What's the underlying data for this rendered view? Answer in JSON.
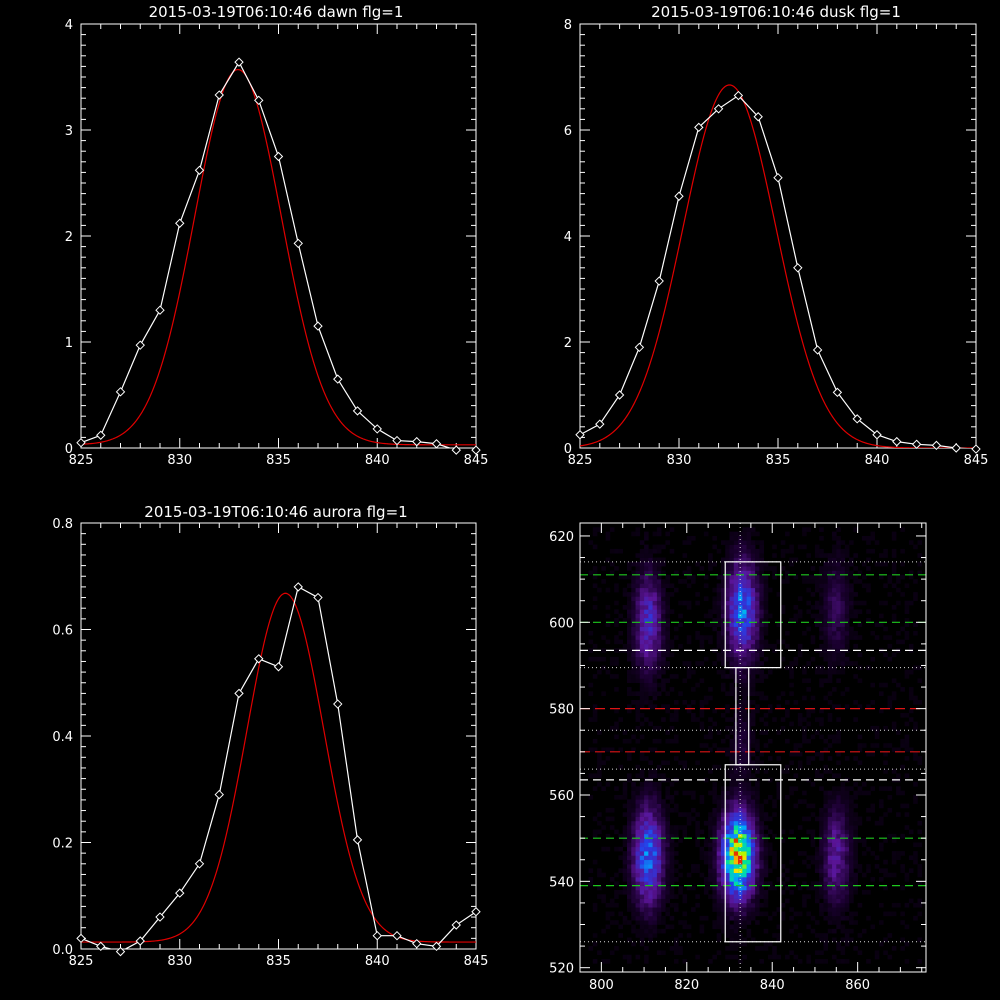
{
  "chart_data": [
    {
      "type": "line",
      "title": "2015-03-19T06:10:46 dawn flg=1",
      "xlim": [
        825,
        845
      ],
      "ylim": [
        0,
        4
      ],
      "xticks": [
        825,
        830,
        835,
        840,
        845
      ],
      "yticks": [
        0,
        1,
        2,
        3,
        4
      ],
      "series": [
        {
          "kind": "measured",
          "color": "#ffffff",
          "marker": "diamond",
          "x": [
            825,
            826,
            827,
            828,
            829,
            830,
            831,
            832,
            833,
            834,
            835,
            836,
            837,
            838,
            839,
            840,
            841,
            842,
            843,
            844,
            845
          ],
          "y": [
            0.05,
            0.12,
            0.53,
            0.97,
            1.3,
            2.12,
            2.62,
            3.33,
            3.64,
            3.28,
            2.75,
            1.93,
            1.15,
            0.65,
            0.35,
            0.18,
            0.07,
            0.06,
            0.04,
            -0.02,
            -0.02
          ]
        },
        {
          "kind": "fit",
          "color": "#e00000",
          "model": "gaussian",
          "amp": 3.54,
          "center": 832.95,
          "sigma": 2.2,
          "offset": 0.03
        }
      ]
    },
    {
      "type": "line",
      "title": "2015-03-19T06:10:46 dusk flg=1",
      "xlim": [
        825,
        845
      ],
      "ylim": [
        0,
        8
      ],
      "xticks": [
        825,
        830,
        835,
        840,
        845
      ],
      "yticks": [
        0,
        2,
        4,
        6,
        8
      ],
      "series": [
        {
          "kind": "measured",
          "color": "#ffffff",
          "marker": "diamond",
          "x": [
            825,
            826,
            827,
            828,
            829,
            830,
            831,
            832,
            833,
            834,
            835,
            836,
            837,
            838,
            839,
            840,
            841,
            842,
            843,
            844,
            845
          ],
          "y": [
            0.25,
            0.45,
            1.0,
            1.9,
            3.15,
            4.75,
            6.05,
            6.4,
            6.65,
            6.25,
            5.1,
            3.4,
            1.85,
            1.05,
            0.55,
            0.25,
            0.12,
            0.07,
            0.05,
            0.0,
            -0.02
          ]
        },
        {
          "kind": "fit",
          "color": "#e00000",
          "model": "gaussian",
          "amp": 6.85,
          "center": 832.55,
          "sigma": 2.35,
          "offset": 0.0
        }
      ]
    },
    {
      "type": "line",
      "title": "2015-03-19T06:10:46 aurora flg=1",
      "xlim": [
        825,
        845
      ],
      "ylim": [
        0,
        0.8
      ],
      "xticks": [
        825,
        830,
        835,
        840,
        845
      ],
      "yticks": [
        0.0,
        0.2,
        0.4,
        0.6,
        0.8
      ],
      "series": [
        {
          "kind": "measured",
          "color": "#ffffff",
          "marker": "diamond",
          "x": [
            825,
            826,
            827,
            828,
            829,
            830,
            831,
            832,
            833,
            834,
            835,
            836,
            837,
            838,
            839,
            840,
            841,
            842,
            843,
            844,
            845
          ],
          "y": [
            0.02,
            0.005,
            -0.005,
            0.015,
            0.06,
            0.105,
            0.16,
            0.29,
            0.48,
            0.545,
            0.53,
            0.68,
            0.66,
            0.46,
            0.205,
            0.025,
            0.025,
            0.01,
            0.005,
            0.045,
            0.07
          ]
        },
        {
          "kind": "fit",
          "color": "#e00000",
          "model": "gaussian",
          "amp": 0.655,
          "center": 835.35,
          "sigma": 1.95,
          "offset": 0.013
        }
      ]
    },
    {
      "type": "heatmap",
      "title": "",
      "xlim": [
        795,
        876
      ],
      "ylim": [
        519,
        623
      ],
      "xticks": [
        800,
        820,
        840,
        860
      ],
      "yticks": [
        520,
        540,
        560,
        580,
        600,
        620
      ],
      "spots": [
        {
          "x": 833,
          "y": 603,
          "sx": 2.2,
          "sy": 7,
          "amp": 0.45
        },
        {
          "x": 811,
          "y": 600,
          "sx": 2.0,
          "sy": 7,
          "amp": 0.28
        },
        {
          "x": 832,
          "y": 546,
          "sx": 2.4,
          "sy": 6,
          "amp": 0.95
        },
        {
          "x": 811,
          "y": 546,
          "sx": 2.2,
          "sy": 7,
          "amp": 0.45
        },
        {
          "x": 855,
          "y": 546,
          "sx": 2.0,
          "sy": 7,
          "amp": 0.2
        },
        {
          "x": 855,
          "y": 603,
          "sx": 2.0,
          "sy": 7,
          "amp": 0.1
        },
        {
          "x": 833,
          "y": 572,
          "sx": 1.6,
          "sy": 6,
          "amp": 0.06
        }
      ],
      "vertical_line_x": 832.5,
      "green_dashed_y": [
        611,
        600,
        550,
        539
      ],
      "white_dashed_y": [
        593.5,
        563.5
      ],
      "red_dashed_y": [
        580,
        570
      ],
      "dotted_y": [
        614,
        589.5,
        575,
        566,
        526
      ],
      "boxes": [
        {
          "x0": 829,
          "x1": 842,
          "y0": 589.5,
          "y1": 614
        },
        {
          "x0": 829,
          "x1": 842,
          "y0": 526,
          "y1": 567
        },
        {
          "x0": 831.5,
          "x1": 834.5,
          "y0": 567,
          "y1": 589.5
        }
      ],
      "colors": {
        "green": "#1ec81e",
        "white": "#ffffff",
        "red": "#dc1414",
        "dotted": "#dcdcdc"
      }
    }
  ]
}
